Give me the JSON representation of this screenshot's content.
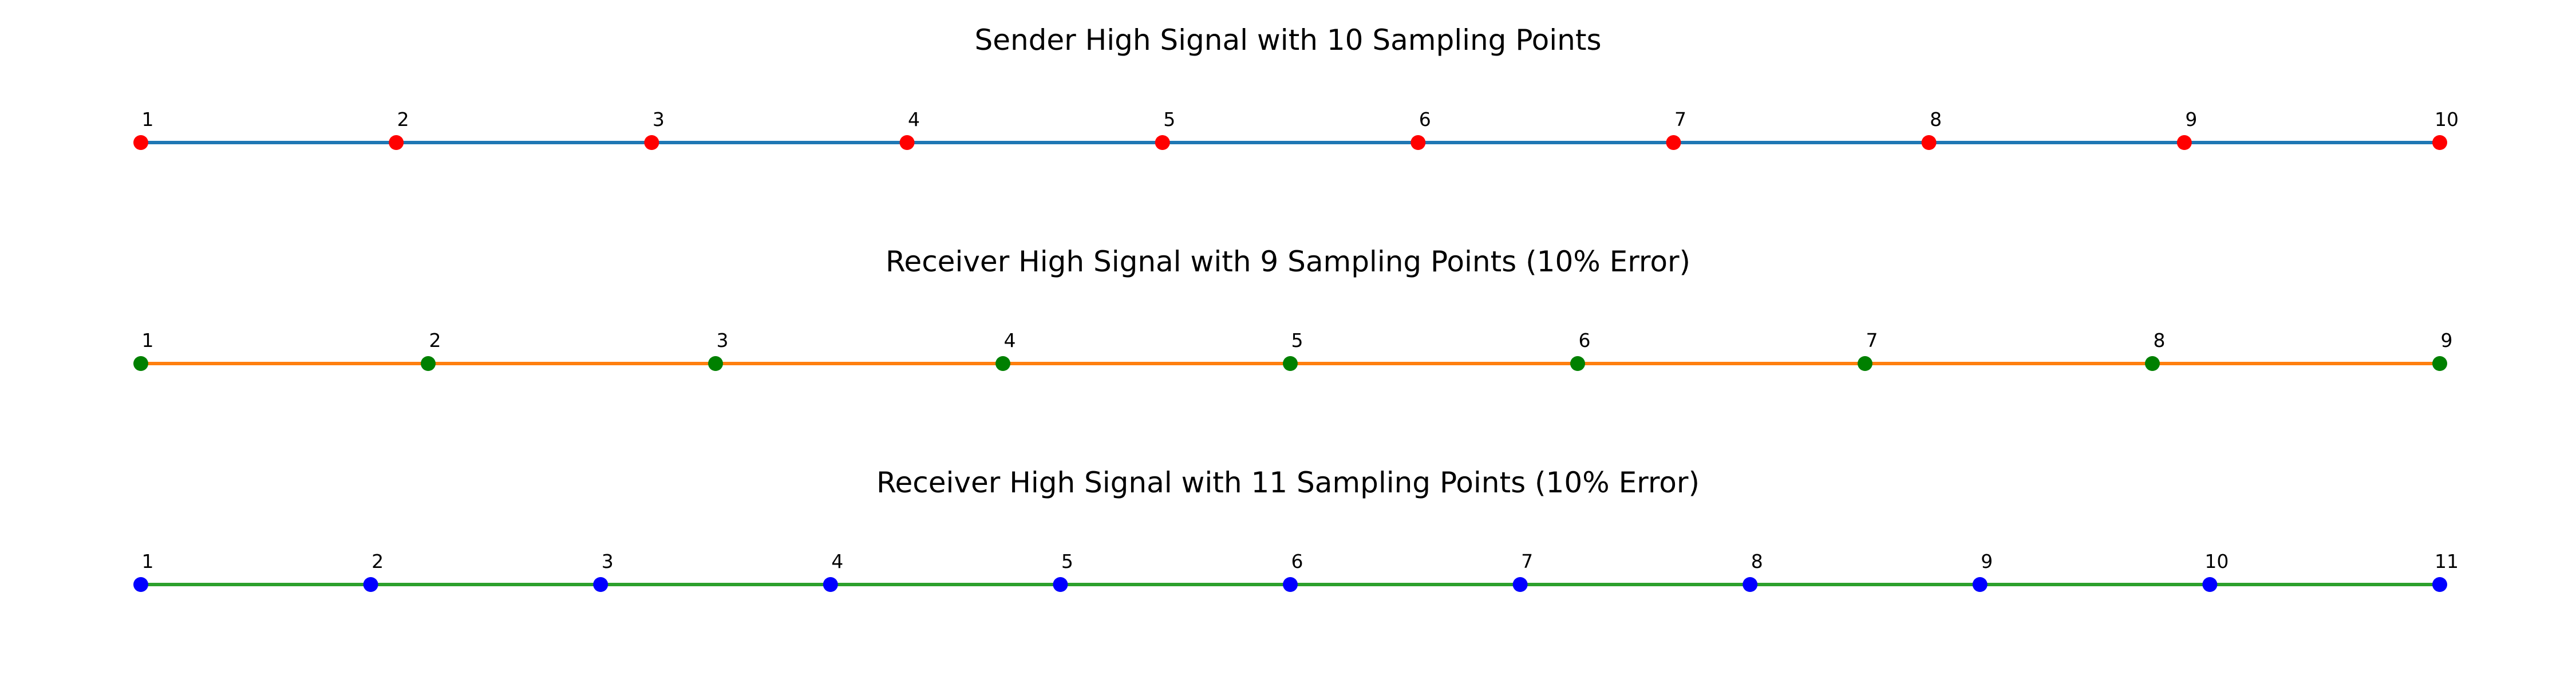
{
  "chart_data": [
    {
      "type": "line",
      "title": "Sender High Signal with 10 Sampling Points",
      "xlabel": "",
      "ylabel": "",
      "grid": false,
      "axes_visible": false,
      "line_color": "#1f77b4",
      "marker_color": "#ff0000",
      "x": [
        0,
        0.1111,
        0.2222,
        0.3333,
        0.4444,
        0.5556,
        0.6667,
        0.7778,
        0.8889,
        1
      ],
      "y": [
        1,
        1,
        1,
        1,
        1,
        1,
        1,
        1,
        1,
        1
      ],
      "point_labels": [
        "1",
        "2",
        "3",
        "4",
        "5",
        "6",
        "7",
        "8",
        "9",
        "10"
      ]
    },
    {
      "type": "line",
      "title": "Receiver High Signal with 9 Sampling Points (10% Error)",
      "xlabel": "",
      "ylabel": "",
      "grid": false,
      "axes_visible": false,
      "line_color": "#ff7f0e",
      "marker_color": "#008000",
      "x": [
        0,
        0.125,
        0.25,
        0.375,
        0.5,
        0.625,
        0.75,
        0.875,
        1
      ],
      "y": [
        1,
        1,
        1,
        1,
        1,
        1,
        1,
        1,
        1
      ],
      "point_labels": [
        "1",
        "2",
        "3",
        "4",
        "5",
        "6",
        "7",
        "8",
        "9"
      ]
    },
    {
      "type": "line",
      "title": "Receiver High Signal with 11 Sampling Points (10% Error)",
      "xlabel": "",
      "ylabel": "",
      "grid": false,
      "axes_visible": false,
      "line_color": "#2ca02c",
      "marker_color": "#0000ff",
      "x": [
        0,
        0.1,
        0.2,
        0.3,
        0.4,
        0.5,
        0.6,
        0.7,
        0.8,
        0.9,
        1
      ],
      "y": [
        1,
        1,
        1,
        1,
        1,
        1,
        1,
        1,
        1,
        1,
        1
      ],
      "point_labels": [
        "1",
        "2",
        "3",
        "4",
        "5",
        "6",
        "7",
        "8",
        "9",
        "10",
        "11"
      ]
    }
  ]
}
